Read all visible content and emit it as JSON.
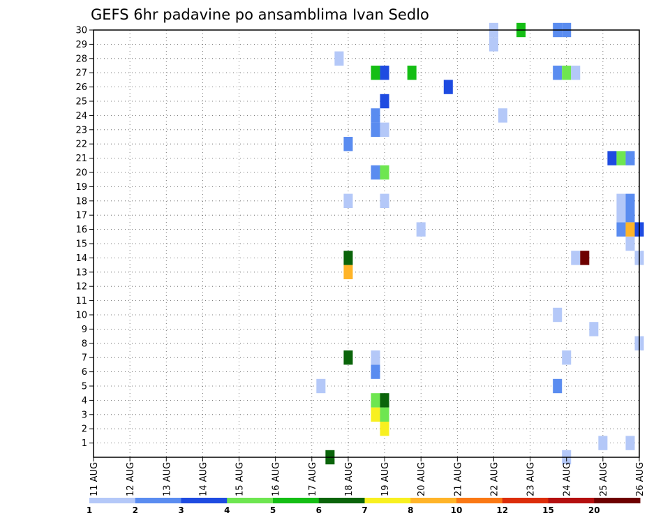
{
  "chart_data": {
    "type": "heatmap",
    "title": "GEFS 6hr padavine po ansamblima Ivan Sedlo",
    "x_tick_labels": [
      "11 AUG",
      "12 AUG",
      "13 AUG",
      "14 AUG",
      "15 AUG",
      "16 AUG",
      "17 AUG",
      "18 AUG",
      "19 AUG",
      "20 AUG",
      "21 AUG",
      "22 AUG",
      "23 AUG",
      "24 AUG",
      "25 AUG",
      "26 AUG"
    ],
    "y_tick_labels": [
      "1",
      "2",
      "3",
      "4",
      "5",
      "6",
      "7",
      "8",
      "9",
      "10",
      "11",
      "12",
      "13",
      "14",
      "15",
      "16",
      "17",
      "18",
      "19",
      "20",
      "21",
      "22",
      "23",
      "24",
      "25",
      "26",
      "27",
      "28",
      "29",
      "30"
    ],
    "ylim": [
      0,
      30
    ],
    "grid": true,
    "legend": {
      "placement": "bottom",
      "colors": [
        "#b4c8f8",
        "#5a8cf0",
        "#1e4be1",
        "#6ee650",
        "#14be14",
        "#0a640a",
        "#f8f020",
        "#ffb428",
        "#fa7814",
        "#dc2d0a",
        "#b40f0f",
        "#6e0000"
      ],
      "labels": [
        "1",
        "2",
        "3",
        "4",
        "5",
        "6",
        "7",
        "8",
        "10",
        "12",
        "15",
        "20"
      ]
    },
    "cells": [
      {
        "day": 17.5,
        "member": 0,
        "color": "#0a640a"
      },
      {
        "day": 17.25,
        "member": 5,
        "color": "#b4c8f8"
      },
      {
        "day": 18.0,
        "member": 7,
        "color": "#0a640a"
      },
      {
        "day": 18.0,
        "member": 13,
        "color": "#ffb428"
      },
      {
        "day": 18.0,
        "member": 14,
        "color": "#0a640a"
      },
      {
        "day": 18.0,
        "member": 18,
        "color": "#b4c8f8"
      },
      {
        "day": 18.0,
        "member": 22,
        "color": "#5a8cf0"
      },
      {
        "day": 17.75,
        "member": 28,
        "color": "#b4c8f8"
      },
      {
        "day": 18.75,
        "member": 3,
        "color": "#f8f020"
      },
      {
        "day": 18.75,
        "member": 4,
        "color": "#6ee650"
      },
      {
        "day": 18.75,
        "member": 6,
        "color": "#5a8cf0"
      },
      {
        "day": 18.75,
        "member": 7,
        "color": "#b4c8f8"
      },
      {
        "day": 18.75,
        "member": 20,
        "color": "#5a8cf0"
      },
      {
        "day": 18.75,
        "member": 23,
        "color": "#5a8cf0"
      },
      {
        "day": 18.75,
        "member": 24,
        "color": "#5a8cf0"
      },
      {
        "day": 18.75,
        "member": 27,
        "color": "#14be14"
      },
      {
        "day": 19.0,
        "member": 2,
        "color": "#f8f020"
      },
      {
        "day": 19.0,
        "member": 3,
        "color": "#6ee650"
      },
      {
        "day": 19.0,
        "member": 4,
        "color": "#0a640a"
      },
      {
        "day": 19.0,
        "member": 18,
        "color": "#b4c8f8"
      },
      {
        "day": 19.0,
        "member": 20,
        "color": "#6ee650"
      },
      {
        "day": 19.0,
        "member": 23,
        "color": "#b4c8f8"
      },
      {
        "day": 19.0,
        "member": 25,
        "color": "#1e4be1"
      },
      {
        "day": 19.0,
        "member": 27,
        "color": "#1e4be1"
      },
      {
        "day": 19.75,
        "member": 27,
        "color": "#14be14"
      },
      {
        "day": 20.0,
        "member": 16,
        "color": "#b4c8f8"
      },
      {
        "day": 20.75,
        "member": 26,
        "color": "#1e4be1"
      },
      {
        "day": 22.0,
        "member": 29,
        "color": "#b4c8f8"
      },
      {
        "day": 22.0,
        "member": 30,
        "color": "#b4c8f8"
      },
      {
        "day": 22.25,
        "member": 24,
        "color": "#b4c8f8"
      },
      {
        "day": 22.75,
        "member": 30,
        "color": "#14be14"
      },
      {
        "day": 23.75,
        "member": 5,
        "color": "#5a8cf0"
      },
      {
        "day": 23.75,
        "member": 10,
        "color": "#b4c8f8"
      },
      {
        "day": 23.75,
        "member": 27,
        "color": "#5a8cf0"
      },
      {
        "day": 23.75,
        "member": 30,
        "color": "#5a8cf0"
      },
      {
        "day": 24.0,
        "member": 0,
        "color": "#b4c8f8"
      },
      {
        "day": 24.0,
        "member": 7,
        "color": "#b4c8f8"
      },
      {
        "day": 24.0,
        "member": 27,
        "color": "#6ee650"
      },
      {
        "day": 24.0,
        "member": 30,
        "color": "#5a8cf0"
      },
      {
        "day": 24.25,
        "member": 14,
        "color": "#b4c8f8"
      },
      {
        "day": 24.25,
        "member": 27,
        "color": "#b4c8f8"
      },
      {
        "day": 24.5,
        "member": 14,
        "color": "#6e0000"
      },
      {
        "day": 24.75,
        "member": 9,
        "color": "#b4c8f8"
      },
      {
        "day": 25.0,
        "member": 1,
        "color": "#b4c8f8"
      },
      {
        "day": 25.25,
        "member": 21,
        "color": "#1e4be1"
      },
      {
        "day": 25.5,
        "member": 16,
        "color": "#5a8cf0"
      },
      {
        "day": 25.5,
        "member": 17,
        "color": "#b4c8f8"
      },
      {
        "day": 25.5,
        "member": 18,
        "color": "#b4c8f8"
      },
      {
        "day": 25.5,
        "member": 21,
        "color": "#6ee650"
      },
      {
        "day": 25.75,
        "member": 1,
        "color": "#b4c8f8"
      },
      {
        "day": 25.75,
        "member": 15,
        "color": "#b4c8f8"
      },
      {
        "day": 25.75,
        "member": 16,
        "color": "#ffb428"
      },
      {
        "day": 25.75,
        "member": 17,
        "color": "#5a8cf0"
      },
      {
        "day": 25.75,
        "member": 18,
        "color": "#5a8cf0"
      },
      {
        "day": 25.75,
        "member": 21,
        "color": "#5a8cf0"
      },
      {
        "day": 26.0,
        "member": 8,
        "color": "#b4c8f8"
      },
      {
        "day": 26.0,
        "member": 14,
        "color": "#b4c8f8"
      },
      {
        "day": 26.0,
        "member": 16,
        "color": "#1e4be1"
      }
    ]
  }
}
